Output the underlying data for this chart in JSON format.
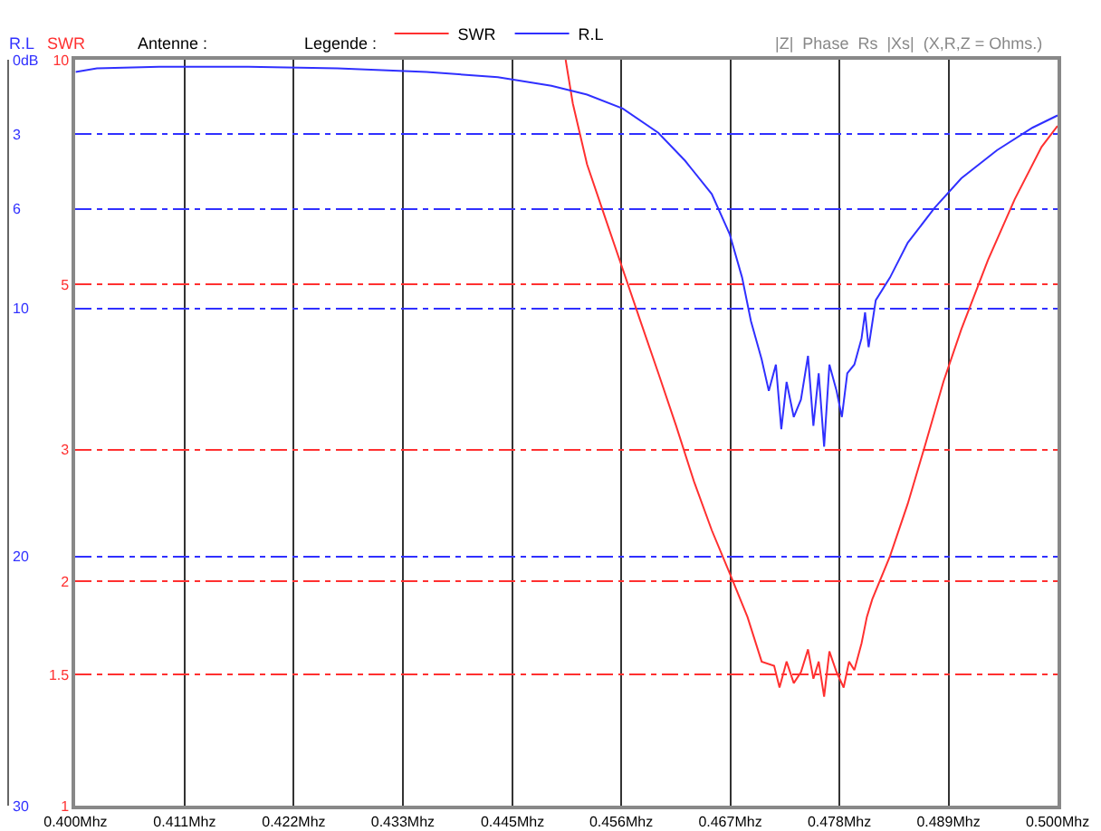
{
  "chart_data": {
    "type": "line",
    "ylabel": "SWR",
    "y2label": "R.L",
    "annotations": [
      "Antenne :",
      "Legende :",
      "|Z|",
      "Phase",
      "Rs",
      "|Xs|",
      "(X,R,Z = Ohms.)"
    ],
    "xlim": [
      0.4,
      0.5
    ],
    "xticks": [
      {
        "value": 0.4,
        "label": "0.400Mhz"
      },
      {
        "value": 0.41111,
        "label": "0.411Mhz"
      },
      {
        "value": 0.42222,
        "label": "0.422Mhz"
      },
      {
        "value": 0.43333,
        "label": "0.433Mhz"
      },
      {
        "value": 0.4445,
        "label": "0.445Mhz"
      },
      {
        "value": 0.45556,
        "label": "0.456Mhz"
      },
      {
        "value": 0.46667,
        "label": "0.467Mhz"
      },
      {
        "value": 0.47778,
        "label": "0.478Mhz"
      },
      {
        "value": 0.48889,
        "label": "0.489Mhz"
      },
      {
        "value": 0.5,
        "label": "0.500Mhz"
      }
    ],
    "ylim": [
      1,
      10
    ],
    "yticks": [
      1,
      1.5,
      2,
      3,
      5,
      10
    ],
    "log": "y",
    "y2lim": [
      30,
      0
    ],
    "y2ticks": [
      30,
      20,
      10,
      6,
      3,
      {
        "value": 0,
        "label": "0dB"
      }
    ],
    "grid": true,
    "legend": "top",
    "line_style": "solid",
    "marker": "none",
    "series": [
      {
        "name": "SWR",
        "color": "#ff3030",
        "x": [
          0.44991,
          0.45064,
          0.45209,
          0.4539,
          0.45572,
          0.45753,
          0.45935,
          0.46116,
          0.46298,
          0.46479,
          0.46661,
          0.46843,
          0.46987,
          0.47114,
          0.47169,
          0.47241,
          0.47314,
          0.47387,
          0.47459,
          0.47514,
          0.47568,
          0.47623,
          0.47677,
          0.4775,
          0.47822,
          0.47877,
          0.47931,
          0.48004,
          0.48058,
          0.48113,
          0.48294,
          0.48475,
          0.48657,
          0.48838,
          0.4902,
          0.49292,
          0.49564,
          0.49837,
          0.5
        ],
        "values": [
          10,
          8.74,
          7.24,
          6.16,
          5.24,
          4.46,
          3.8,
          3.23,
          2.72,
          2.34,
          2.05,
          1.79,
          1.56,
          1.54,
          1.44,
          1.56,
          1.46,
          1.51,
          1.62,
          1.48,
          1.56,
          1.4,
          1.61,
          1.51,
          1.44,
          1.56,
          1.52,
          1.65,
          1.79,
          1.89,
          2.16,
          2.54,
          3.06,
          3.7,
          4.35,
          5.39,
          6.5,
          7.64,
          8.15
        ]
      },
      {
        "name": "R.L",
        "color": "#3030ff",
        "axis": "y2",
        "x": [
          0.4,
          0.40218,
          0.40853,
          0.4176,
          0.42668,
          0.43575,
          0.44301,
          0.44846,
          0.45209,
          0.45572,
          0.45935,
          0.46207,
          0.46479,
          0.46661,
          0.46788,
          0.46878,
          0.46987,
          0.4706,
          0.47132,
          0.47187,
          0.47241,
          0.47314,
          0.47387,
          0.47459,
          0.47514,
          0.47568,
          0.47623,
          0.47677,
          0.4775,
          0.47804,
          0.47859,
          0.47931,
          0.48004,
          0.4804,
          0.48076,
          0.48149,
          0.48294,
          0.48475,
          0.48748,
          0.4902,
          0.49383,
          0.49746,
          0.5
        ],
        "values": [
          0.49,
          0.35,
          0.28,
          0.28,
          0.35,
          0.49,
          0.7,
          1.05,
          1.4,
          1.96,
          2.94,
          4.06,
          5.4,
          7.01,
          8.76,
          10.51,
          12.05,
          13.32,
          12.26,
          14.86,
          12.96,
          14.37,
          13.67,
          11.91,
          14.72,
          12.61,
          15.56,
          12.26,
          13.32,
          14.37,
          12.61,
          12.26,
          11.21,
          10.16,
          11.56,
          9.67,
          8.76,
          7.36,
          5.96,
          4.77,
          3.64,
          2.73,
          2.24
        ]
      }
    ]
  }
}
